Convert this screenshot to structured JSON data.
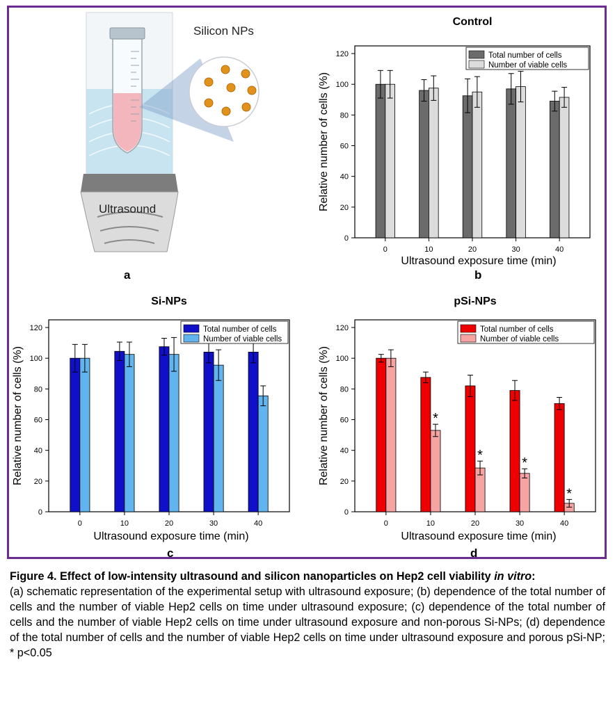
{
  "panel_a": {
    "letter": "a",
    "nps_label": "Silicon NPs",
    "device_label": "Ultrasound",
    "colors": {
      "liquid": "#f4b6bd",
      "water": "#bfe0ee",
      "np": "#e0921c"
    }
  },
  "panel_letters": {
    "b": "b",
    "c": "c",
    "d": "d"
  },
  "chart_data": [
    {
      "panel": "b",
      "type": "bar",
      "title": "Control",
      "xlabel": "Ultrasound exposure time (min)",
      "ylabel": "Relative number of cells (%)",
      "categories": [
        "0",
        "10",
        "20",
        "30",
        "40"
      ],
      "ylim": [
        0,
        125
      ],
      "yticks": [
        "0",
        "20",
        "40",
        "60",
        "80",
        "100",
        "120"
      ],
      "legend_position": "top-right",
      "series": [
        {
          "name": "Total number of cells",
          "color": "#6b6b6b",
          "values": [
            100,
            96,
            92.5,
            97,
            89
          ],
          "errors": [
            9,
            7,
            11,
            10,
            6.5
          ]
        },
        {
          "name": "Number of viable cells",
          "color": "#dcdcdc",
          "values": [
            100,
            97.5,
            95,
            98.5,
            91.5
          ],
          "errors": [
            9,
            8,
            10,
            10,
            6.5
          ]
        }
      ]
    },
    {
      "panel": "c",
      "type": "bar",
      "title": "Si-NPs",
      "xlabel": "Ultrasound exposure time (min)",
      "ylabel": "Relative number of cells (%)",
      "categories": [
        "0",
        "10",
        "20",
        "30",
        "40"
      ],
      "ylim": [
        0,
        125
      ],
      "yticks": [
        "0",
        "20",
        "40",
        "60",
        "80",
        "100",
        "120"
      ],
      "legend_position": "top-right",
      "series": [
        {
          "name": "Total number of cells",
          "color": "#1010c8",
          "values": [
            100,
            104.5,
            107.5,
            104,
            104
          ],
          "errors": [
            9,
            6,
            5.5,
            7,
            7
          ]
        },
        {
          "name": "Number of viable cells",
          "color": "#62b4ee",
          "values": [
            100,
            102.5,
            102.5,
            95.5,
            75.5
          ],
          "errors": [
            9,
            8,
            11,
            10,
            6.5
          ]
        }
      ]
    },
    {
      "panel": "d",
      "type": "bar",
      "title": "pSi-NPs",
      "xlabel": "Ultrasound exposure time (min)",
      "ylabel": "Relative number of cells (%)",
      "categories": [
        "0",
        "10",
        "20",
        "30",
        "40"
      ],
      "ylim": [
        0,
        125
      ],
      "yticks": [
        "0",
        "20",
        "40",
        "60",
        "80",
        "100",
        "120"
      ],
      "legend_position": "top-right",
      "series": [
        {
          "name": "Total number of cells",
          "color": "#ee0000",
          "values": [
            100,
            87.5,
            82,
            79,
            70.5
          ],
          "errors": [
            2.5,
            3.5,
            7,
            6.5,
            4
          ]
        },
        {
          "name": "Number of viable cells",
          "color": "#f5a3a3",
          "values": [
            100,
            53,
            28.5,
            25,
            5.5
          ],
          "errors": [
            5.5,
            4,
            4.5,
            3,
            2.5
          ],
          "significance": [
            "",
            "*",
            "*",
            "*",
            "*"
          ]
        }
      ]
    }
  ],
  "caption": {
    "title": "Figure 4. Effect of low-intensity ultrasound and silicon nanoparticles on Hep2 cell viability",
    "title_italic": "in vitro",
    "title_end": ":",
    "body": "(a) schematic representation of the experimental setup with ultrasound exposure; (b) dependence of the total number of cells and the number of viable Hep2 cells on time under ultrasound exposure; (c) dependence of the total number of cells and the number of viable Hep2 cells on time under ultrasound exposure and non-porous Si-NPs; (d) dependence of the total number of cells and the number of viable Hep2 cells on time under ultrasound exposure and porous pSi-NP; * p<0.05"
  }
}
